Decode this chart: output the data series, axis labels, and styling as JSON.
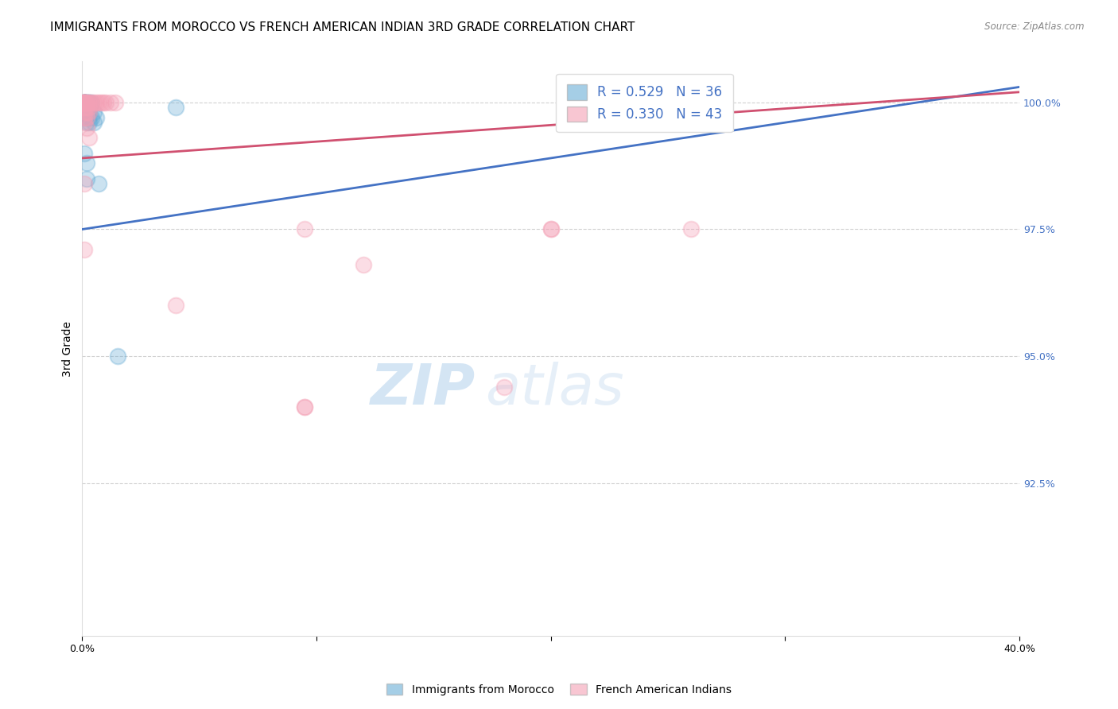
{
  "title": "IMMIGRANTS FROM MOROCCO VS FRENCH AMERICAN INDIAN 3RD GRADE CORRELATION CHART",
  "source": "Source: ZipAtlas.com",
  "ylabel": "3rd Grade",
  "ylabel_right_labels": [
    "100.0%",
    "97.5%",
    "95.0%",
    "92.5%"
  ],
  "ylabel_right_values": [
    1.0,
    0.975,
    0.95,
    0.925
  ],
  "xlim": [
    0.0,
    0.4
  ],
  "ylim": [
    0.895,
    1.008
  ],
  "legend_blue_label": "R = 0.529   N = 36",
  "legend_pink_label": "R = 0.330   N = 43",
  "legend_bottom_blue": "Immigrants from Morocco",
  "legend_bottom_pink": "French American Indians",
  "blue_color": "#6aaed6",
  "pink_color": "#f4a0b5",
  "blue_line": [
    [
      0.0,
      0.975
    ],
    [
      0.4,
      1.003
    ]
  ],
  "pink_line": [
    [
      0.0,
      0.989
    ],
    [
      0.4,
      1.002
    ]
  ],
  "blue_scatter": [
    [
      0.001,
      1.0
    ],
    [
      0.001,
      1.0
    ],
    [
      0.001,
      1.0
    ],
    [
      0.001,
      1.0
    ],
    [
      0.001,
      1.0
    ],
    [
      0.001,
      1.0
    ],
    [
      0.001,
      1.0
    ],
    [
      0.001,
      1.0
    ],
    [
      0.002,
      1.0
    ],
    [
      0.002,
      1.0
    ],
    [
      0.002,
      1.0
    ],
    [
      0.003,
      1.0
    ],
    [
      0.003,
      1.0
    ],
    [
      0.004,
      1.0
    ],
    [
      0.001,
      0.999
    ],
    [
      0.001,
      0.999
    ],
    [
      0.002,
      0.999
    ],
    [
      0.002,
      0.999
    ],
    [
      0.003,
      0.999
    ],
    [
      0.002,
      0.998
    ],
    [
      0.003,
      0.998
    ],
    [
      0.005,
      0.998
    ],
    [
      0.001,
      0.997
    ],
    [
      0.002,
      0.997
    ],
    [
      0.003,
      0.997
    ],
    [
      0.004,
      0.997
    ],
    [
      0.006,
      0.997
    ],
    [
      0.002,
      0.996
    ],
    [
      0.003,
      0.996
    ],
    [
      0.005,
      0.996
    ],
    [
      0.001,
      0.99
    ],
    [
      0.002,
      0.988
    ],
    [
      0.002,
      0.985
    ],
    [
      0.007,
      0.984
    ],
    [
      0.015,
      0.95
    ],
    [
      0.04,
      0.999
    ]
  ],
  "pink_scatter": [
    [
      0.001,
      1.0
    ],
    [
      0.001,
      1.0
    ],
    [
      0.001,
      1.0
    ],
    [
      0.001,
      1.0
    ],
    [
      0.001,
      1.0
    ],
    [
      0.001,
      1.0
    ],
    [
      0.001,
      1.0
    ],
    [
      0.001,
      1.0
    ],
    [
      0.002,
      1.0
    ],
    [
      0.002,
      1.0
    ],
    [
      0.003,
      1.0
    ],
    [
      0.003,
      1.0
    ],
    [
      0.004,
      1.0
    ],
    [
      0.005,
      1.0
    ],
    [
      0.006,
      1.0
    ],
    [
      0.007,
      1.0
    ],
    [
      0.008,
      1.0
    ],
    [
      0.009,
      1.0
    ],
    [
      0.01,
      1.0
    ],
    [
      0.012,
      1.0
    ],
    [
      0.014,
      1.0
    ],
    [
      0.001,
      0.999
    ],
    [
      0.002,
      0.999
    ],
    [
      0.003,
      0.999
    ],
    [
      0.001,
      0.998
    ],
    [
      0.002,
      0.998
    ],
    [
      0.003,
      0.998
    ],
    [
      0.001,
      0.997
    ],
    [
      0.002,
      0.997
    ],
    [
      0.001,
      0.996
    ],
    [
      0.002,
      0.995
    ],
    [
      0.003,
      0.993
    ],
    [
      0.001,
      0.984
    ],
    [
      0.001,
      0.971
    ],
    [
      0.2,
      0.975
    ],
    [
      0.095,
      0.975
    ],
    [
      0.12,
      0.968
    ],
    [
      0.04,
      0.96
    ],
    [
      0.18,
      0.944
    ],
    [
      0.095,
      0.94
    ],
    [
      0.095,
      0.94
    ],
    [
      0.2,
      0.975
    ],
    [
      0.26,
      0.975
    ]
  ],
  "watermark_zip": "ZIP",
  "watermark_atlas": "atlas",
  "grid_color": "#cccccc",
  "marker_size": 200,
  "marker_alpha": 0.35,
  "line_width": 2.0,
  "title_fontsize": 11,
  "axis_label_fontsize": 10,
  "blue_line_color": "#4472C4",
  "pink_line_color": "#D05070"
}
